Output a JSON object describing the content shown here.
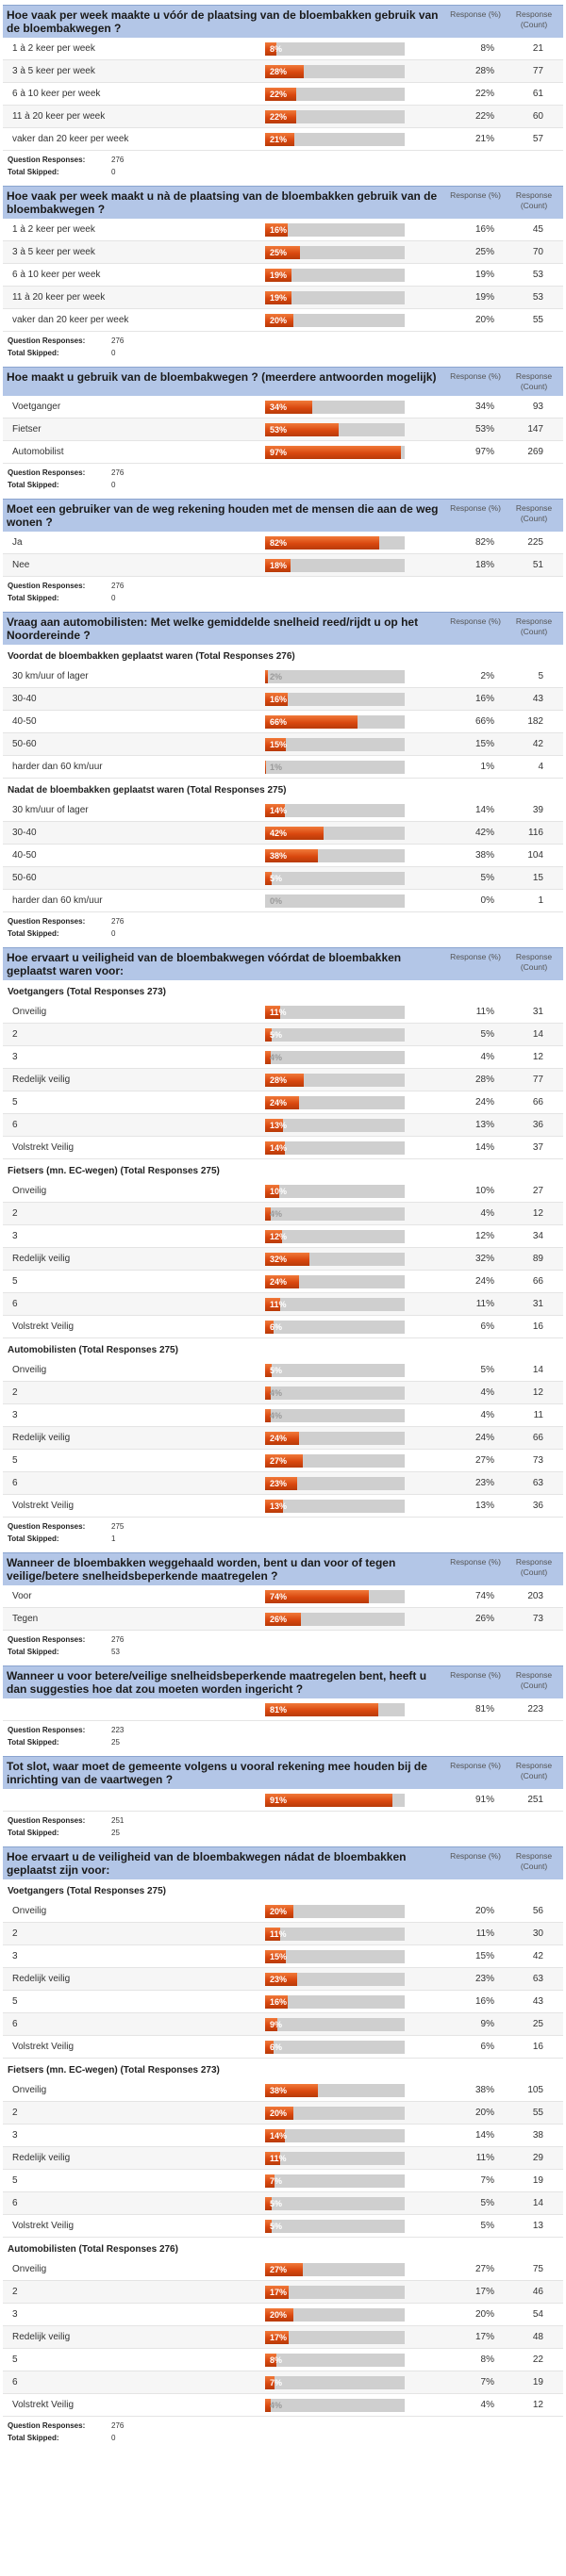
{
  "summary_labels": {
    "responses": "Question Responses:",
    "skipped": "Total Skipped:"
  },
  "col_labels": {
    "percent": "Response (%)",
    "count": "Response (Count)"
  },
  "questions": [
    {
      "title": "Hoe vaak per week maakte u vóór de plaatsing van de bloembakken gebruik van de bloembakwegen ?",
      "groups": [
        {
          "title": "",
          "rows": [
            {
              "label": "1 à 2 keer per week",
              "pct": 8,
              "pct_text": "8%",
              "count": "21"
            },
            {
              "label": "3 à 5 keer per week",
              "pct": 28,
              "pct_text": "28%",
              "count": "77"
            },
            {
              "label": "6 à 10 keer per week",
              "pct": 22,
              "pct_text": "22%",
              "count": "61"
            },
            {
              "label": "11 à 20 keer per week",
              "pct": 22,
              "pct_text": "22%",
              "count": "60"
            },
            {
              "label": "vaker dan 20 keer per week",
              "pct": 21,
              "pct_text": "21%",
              "count": "57"
            }
          ]
        }
      ],
      "responses": "276",
      "skipped": "0"
    },
    {
      "title": "Hoe vaak per week maakt u nà de plaatsing van de bloembakken gebruik van de bloembakwegen ?",
      "groups": [
        {
          "title": "",
          "rows": [
            {
              "label": "1 à 2 keer per week",
              "pct": 16,
              "pct_text": "16%",
              "count": "45"
            },
            {
              "label": "3 à 5 keer per week",
              "pct": 25,
              "pct_text": "25%",
              "count": "70"
            },
            {
              "label": "6 à 10 keer per week",
              "pct": 19,
              "pct_text": "19%",
              "count": "53"
            },
            {
              "label": "11 à 20 keer per week",
              "pct": 19,
              "pct_text": "19%",
              "count": "53"
            },
            {
              "label": "vaker dan 20 keer per week",
              "pct": 20,
              "pct_text": "20%",
              "count": "55"
            }
          ]
        }
      ],
      "responses": "276",
      "skipped": "0"
    },
    {
      "title": "Hoe maakt u gebruik van de bloembakwegen ? (meerdere antwoorden mogelijk)",
      "groups": [
        {
          "title": "",
          "rows": [
            {
              "label": "Voetganger",
              "pct": 34,
              "pct_text": "34%",
              "count": "93"
            },
            {
              "label": "Fietser",
              "pct": 53,
              "pct_text": "53%",
              "count": "147"
            },
            {
              "label": "Automobilist",
              "pct": 97,
              "pct_text": "97%",
              "count": "269"
            }
          ]
        }
      ],
      "responses": "276",
      "skipped": "0"
    },
    {
      "title": "Moet een gebruiker van de weg rekening houden met de mensen die aan de weg wonen ?",
      "groups": [
        {
          "title": "",
          "rows": [
            {
              "label": "Ja",
              "pct": 82,
              "pct_text": "82%",
              "count": "225"
            },
            {
              "label": "Nee",
              "pct": 18,
              "pct_text": "18%",
              "count": "51"
            }
          ]
        }
      ],
      "responses": "276",
      "skipped": "0"
    },
    {
      "title": "Vraag aan automobilisten: Met welke gemiddelde snelheid reed/rijdt u op het Noordereinde ?",
      "groups": [
        {
          "title": "Voordat de bloembakken geplaatst waren (Total Responses 276)",
          "rows": [
            {
              "label": "30 km/uur of lager",
              "pct": 2,
              "pct_text": "2%",
              "count": "5"
            },
            {
              "label": "30-40",
              "pct": 16,
              "pct_text": "16%",
              "count": "43"
            },
            {
              "label": "40-50",
              "pct": 66,
              "pct_text": "66%",
              "count": "182"
            },
            {
              "label": "50-60",
              "pct": 15,
              "pct_text": "15%",
              "count": "42"
            },
            {
              "label": "harder dan 60 km/uur",
              "pct": 1,
              "pct_text": "1%",
              "count": "4"
            }
          ]
        },
        {
          "title": "Nadat de bloembakken geplaatst waren (Total Responses 275)",
          "rows": [
            {
              "label": "30 km/uur of lager",
              "pct": 14,
              "pct_text": "14%",
              "count": "39"
            },
            {
              "label": "30-40",
              "pct": 42,
              "pct_text": "42%",
              "count": "116"
            },
            {
              "label": "40-50",
              "pct": 38,
              "pct_text": "38%",
              "count": "104"
            },
            {
              "label": "50-60",
              "pct": 5,
              "pct_text": "5%",
              "count": "15"
            },
            {
              "label": "harder dan 60 km/uur",
              "pct": 0,
              "pct_text": "0%",
              "count": "1"
            }
          ]
        }
      ],
      "responses": "276",
      "skipped": "0"
    },
    {
      "title": "Hoe ervaart u veiligheid van de bloembakwegen vóórdat de bloembakken geplaatst waren voor:",
      "groups": [
        {
          "title": "Voetgangers (Total Responses 273)",
          "rows": [
            {
              "label": "Onveilig",
              "pct": 11,
              "pct_text": "11%",
              "count": "31"
            },
            {
              "label": "2",
              "pct": 5,
              "pct_text": "5%",
              "count": "14"
            },
            {
              "label": "3",
              "pct": 4,
              "pct_text": "4%",
              "count": "12"
            },
            {
              "label": "Redelijk veilig",
              "pct": 28,
              "pct_text": "28%",
              "count": "77"
            },
            {
              "label": "5",
              "pct": 24,
              "pct_text": "24%",
              "count": "66"
            },
            {
              "label": "6",
              "pct": 13,
              "pct_text": "13%",
              "count": "36"
            },
            {
              "label": "Volstrekt Veilig",
              "pct": 14,
              "pct_text": "14%",
              "count": "37"
            }
          ]
        },
        {
          "title": "Fietsers (mn. EC-wegen) (Total Responses 275)",
          "rows": [
            {
              "label": "Onveilig",
              "pct": 10,
              "pct_text": "10%",
              "count": "27"
            },
            {
              "label": "2",
              "pct": 4,
              "pct_text": "4%",
              "count": "12"
            },
            {
              "label": "3",
              "pct": 12,
              "pct_text": "12%",
              "count": "34"
            },
            {
              "label": "Redelijk veilig",
              "pct": 32,
              "pct_text": "32%",
              "count": "89"
            },
            {
              "label": "5",
              "pct": 24,
              "pct_text": "24%",
              "count": "66"
            },
            {
              "label": "6",
              "pct": 11,
              "pct_text": "11%",
              "count": "31"
            },
            {
              "label": "Volstrekt Veilig",
              "pct": 6,
              "pct_text": "6%",
              "count": "16"
            }
          ]
        },
        {
          "title": "Automobilisten (Total Responses 275)",
          "rows": [
            {
              "label": "Onveilig",
              "pct": 5,
              "pct_text": "5%",
              "count": "14"
            },
            {
              "label": "2",
              "pct": 4,
              "pct_text": "4%",
              "count": "12"
            },
            {
              "label": "3",
              "pct": 4,
              "pct_text": "4%",
              "count": "11"
            },
            {
              "label": "Redelijk veilig",
              "pct": 24,
              "pct_text": "24%",
              "count": "66"
            },
            {
              "label": "5",
              "pct": 27,
              "pct_text": "27%",
              "count": "73"
            },
            {
              "label": "6",
              "pct": 23,
              "pct_text": "23%",
              "count": "63"
            },
            {
              "label": "Volstrekt Veilig",
              "pct": 13,
              "pct_text": "13%",
              "count": "36"
            }
          ]
        }
      ],
      "responses": "275",
      "skipped": "1"
    },
    {
      "title": "Wanneer de bloembakken weggehaald worden, bent u dan voor of tegen veilige/betere snelheidsbeperkende maatregelen ?",
      "groups": [
        {
          "title": "",
          "rows": [
            {
              "label": "Voor",
              "pct": 74,
              "pct_text": "74%",
              "count": "203"
            },
            {
              "label": "Tegen",
              "pct": 26,
              "pct_text": "26%",
              "count": "73"
            }
          ]
        }
      ],
      "responses": "276",
      "skipped": "53"
    },
    {
      "title": "Wanneer u voor betere/veilige snelheidsbeperkende maatregelen bent, heeft u dan suggesties hoe dat zou moeten worden ingericht ?",
      "groups": [
        {
          "title": "",
          "rows": [
            {
              "label": "",
              "pct": 81,
              "pct_text": "81%",
              "count": "223"
            }
          ]
        }
      ],
      "responses": "223",
      "skipped": "25"
    },
    {
      "title": "Tot slot, waar moet de gemeente volgens u vooral rekening mee houden bij de inrichting van de vaartwegen ?",
      "groups": [
        {
          "title": "",
          "rows": [
            {
              "label": "",
              "pct": 91,
              "pct_text": "91%",
              "count": "251"
            }
          ]
        }
      ],
      "responses": "251",
      "skipped": "25"
    },
    {
      "title": "Hoe ervaart u de veiligheid van de bloembakwegen nádat de bloembakken geplaatst zijn voor:",
      "groups": [
        {
          "title": "Voetgangers (Total Responses 275)",
          "rows": [
            {
              "label": "Onveilig",
              "pct": 20,
              "pct_text": "20%",
              "count": "56"
            },
            {
              "label": "2",
              "pct": 11,
              "pct_text": "11%",
              "count": "30"
            },
            {
              "label": "3",
              "pct": 15,
              "pct_text": "15%",
              "count": "42"
            },
            {
              "label": "Redelijk veilig",
              "pct": 23,
              "pct_text": "23%",
              "count": "63"
            },
            {
              "label": "5",
              "pct": 16,
              "pct_text": "16%",
              "count": "43"
            },
            {
              "label": "6",
              "pct": 9,
              "pct_text": "9%",
              "count": "25"
            },
            {
              "label": "Volstrekt Veilig",
              "pct": 6,
              "pct_text": "6%",
              "count": "16"
            }
          ]
        },
        {
          "title": "Fietsers (mn. EC-wegen) (Total Responses 273)",
          "rows": [
            {
              "label": "Onveilig",
              "pct": 38,
              "pct_text": "38%",
              "count": "105"
            },
            {
              "label": "2",
              "pct": 20,
              "pct_text": "20%",
              "count": "55"
            },
            {
              "label": "3",
              "pct": 14,
              "pct_text": "14%",
              "count": "38"
            },
            {
              "label": "Redelijk veilig",
              "pct": 11,
              "pct_text": "11%",
              "count": "29"
            },
            {
              "label": "5",
              "pct": 7,
              "pct_text": "7%",
              "count": "19"
            },
            {
              "label": "6",
              "pct": 5,
              "pct_text": "5%",
              "count": "14"
            },
            {
              "label": "Volstrekt Veilig",
              "pct": 5,
              "pct_text": "5%",
              "count": "13"
            }
          ]
        },
        {
          "title": "Automobilisten (Total Responses 276)",
          "rows": [
            {
              "label": "Onveilig",
              "pct": 27,
              "pct_text": "27%",
              "count": "75"
            },
            {
              "label": "2",
              "pct": 17,
              "pct_text": "17%",
              "count": "46"
            },
            {
              "label": "3",
              "pct": 20,
              "pct_text": "20%",
              "count": "54"
            },
            {
              "label": "Redelijk veilig",
              "pct": 17,
              "pct_text": "17%",
              "count": "48"
            },
            {
              "label": "5",
              "pct": 8,
              "pct_text": "8%",
              "count": "22"
            },
            {
              "label": "6",
              "pct": 7,
              "pct_text": "7%",
              "count": "19"
            },
            {
              "label": "Volstrekt Veilig",
              "pct": 4,
              "pct_text": "4%",
              "count": "12"
            }
          ]
        }
      ],
      "responses": "276",
      "skipped": "0"
    }
  ]
}
